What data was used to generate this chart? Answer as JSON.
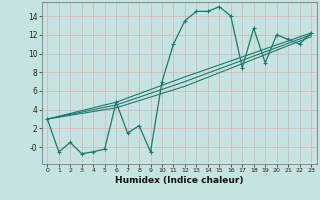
{
  "xlabel": "Humidex (Indice chaleur)",
  "bg_color": "#c5e3e3",
  "grid_color": "#aacccc",
  "line_color": "#1a7a6e",
  "xlim": [
    -0.5,
    23.5
  ],
  "ylim": [
    -1.8,
    15.5
  ],
  "xticks": [
    0,
    1,
    2,
    3,
    4,
    5,
    6,
    7,
    8,
    9,
    10,
    11,
    12,
    13,
    14,
    15,
    16,
    17,
    18,
    19,
    20,
    21,
    22,
    23
  ],
  "yticks": [
    0,
    2,
    4,
    6,
    8,
    10,
    12,
    14
  ],
  "ytick_labels": [
    "-0",
    "2",
    "4",
    "6",
    "8",
    "10",
    "12",
    "14"
  ],
  "main_series": {
    "x": [
      0,
      1,
      2,
      3,
      4,
      5,
      6,
      7,
      8,
      9,
      10,
      11,
      12,
      13,
      14,
      15,
      16,
      17,
      18,
      19,
      20,
      21,
      22,
      23
    ],
    "y": [
      3.0,
      -0.5,
      0.5,
      -0.7,
      -0.5,
      -0.2,
      4.8,
      1.5,
      2.3,
      -0.5,
      7.0,
      11.0,
      13.5,
      14.5,
      14.5,
      15.0,
      14.0,
      8.5,
      12.7,
      9.0,
      12.0,
      11.5,
      11.0,
      12.2
    ]
  },
  "linear_series": [
    {
      "x": [
        0,
        6,
        12,
        23
      ],
      "y": [
        3.0,
        4.8,
        7.5,
        12.2
      ]
    },
    {
      "x": [
        0,
        6,
        12,
        23
      ],
      "y": [
        3.0,
        4.5,
        7.0,
        12.0
      ]
    },
    {
      "x": [
        0,
        6,
        12,
        23
      ],
      "y": [
        3.0,
        4.2,
        6.5,
        11.8
      ]
    }
  ]
}
